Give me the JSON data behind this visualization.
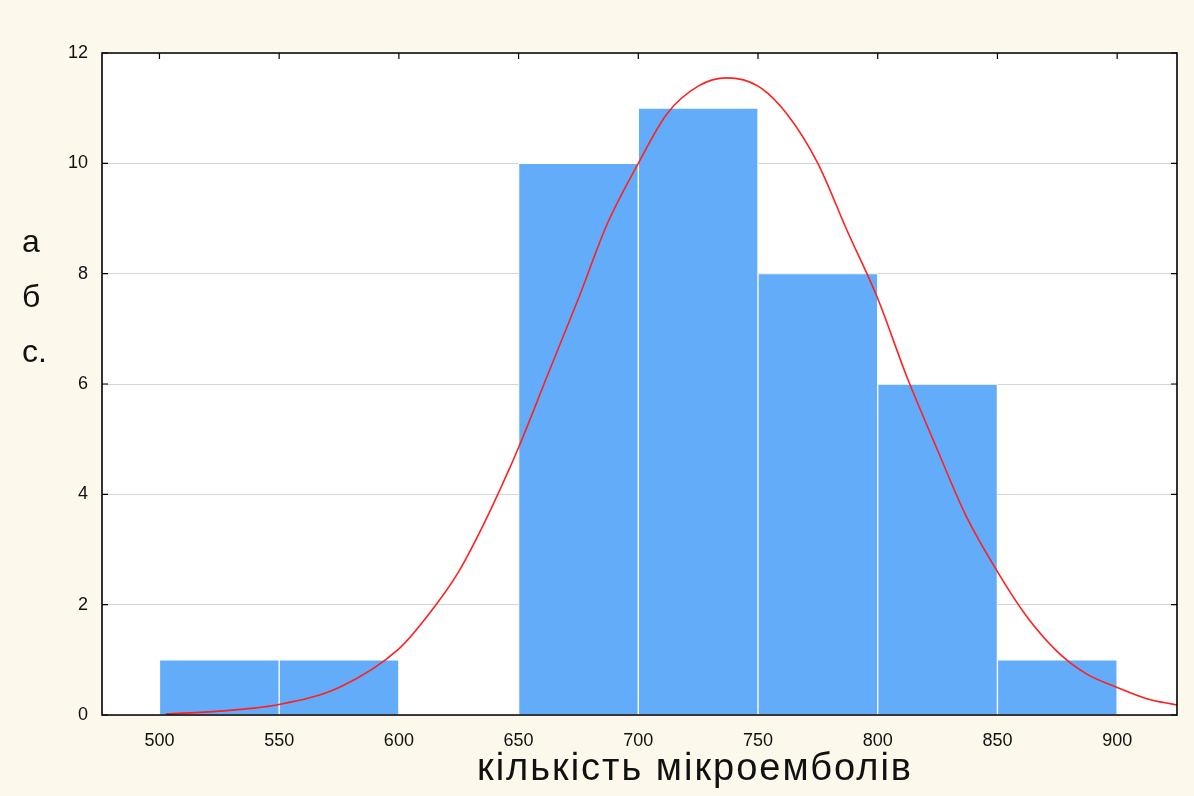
{
  "chart_data": {
    "type": "histogram",
    "xlabel": "кількість мікроемболів",
    "ylabel": "абс.",
    "bins": [
      500,
      550,
      600,
      650,
      700,
      750,
      800,
      850,
      900
    ],
    "series": [
      {
        "color": "#63acf9",
        "values": [
          1,
          1,
          0,
          10,
          11,
          8,
          6,
          1
        ]
      },
      {
        "type": "line",
        "color": "#ff2020",
        "x": [
          503,
          525,
          550,
          575,
          600,
          612,
          625,
          637,
          650,
          662,
          675,
          687,
          700,
          712,
          725,
          737,
          750,
          762,
          775,
          787,
          800,
          812,
          825,
          837,
          850,
          862,
          875,
          887,
          900,
          912,
          925
        ],
        "values": [
          0.02,
          0.07,
          0.19,
          0.5,
          1.2,
          1.8,
          2.6,
          3.6,
          4.85,
          6.15,
          7.55,
          8.9,
          10.0,
          10.9,
          11.4,
          11.55,
          11.4,
          10.9,
          10.0,
          8.8,
          7.55,
          6.15,
          4.8,
          3.6,
          2.6,
          1.8,
          1.15,
          0.75,
          0.5,
          0.3,
          0.18
        ]
      }
    ],
    "xlim": [
      476,
      925
    ],
    "xticks": [
      500,
      550,
      600,
      650,
      700,
      750,
      800,
      850,
      900
    ],
    "ylim": [
      0,
      12
    ],
    "yticks": [
      0,
      2,
      4,
      6,
      8,
      10,
      12
    ],
    "grid": "y"
  }
}
